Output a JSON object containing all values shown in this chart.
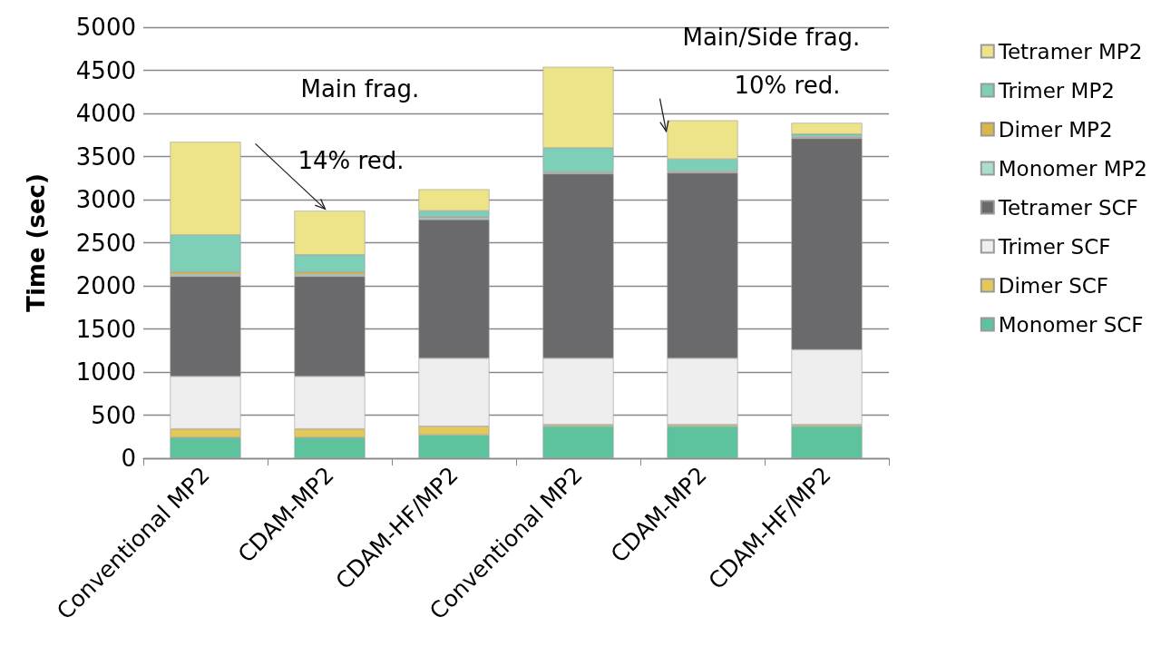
{
  "chart_data": {
    "type": "bar",
    "stacked": true,
    "ylabel": "Time (sec)",
    "categories": [
      "Conventional MP2",
      "CDAM-MP2",
      "CDAM-HF/MP2",
      "Conventional MP2",
      "CDAM-MP2",
      "CDAM-HF/MP2"
    ],
    "series": [
      {
        "name": "Monomer SCF",
        "color": "#5cc39d",
        "values": [
          240,
          240,
          270,
          370,
          370,
          370
        ]
      },
      {
        "name": "Dimer SCF",
        "color": "#e3c95a",
        "values": [
          100,
          100,
          100,
          20,
          20,
          20
        ]
      },
      {
        "name": "Trimer SCF",
        "color": "#eeeeee",
        "values": [
          610,
          610,
          790,
          770,
          770,
          870
        ]
      },
      {
        "name": "Tetramer SCF",
        "color": "#6a6a6c",
        "values": [
          1160,
          1160,
          1610,
          2140,
          2150,
          2450
        ]
      },
      {
        "name": "Monomer MP2",
        "color": "#a8ddd0",
        "values": [
          20,
          20,
          20,
          10,
          10,
          10
        ]
      },
      {
        "name": "Dimer MP2",
        "color": "#d9b54a",
        "values": [
          30,
          30,
          10,
          10,
          10,
          10
        ]
      },
      {
        "name": "Trimer MP2",
        "color": "#7ecfb8",
        "values": [
          430,
          200,
          70,
          280,
          140,
          30
        ]
      },
      {
        "name": "Tetramer MP2",
        "color": "#ede48a",
        "values": [
          1080,
          510,
          250,
          940,
          450,
          130
        ]
      }
    ],
    "ylim": [
      0,
      5000
    ],
    "yticks": [
      0,
      500,
      1000,
      1500,
      2000,
      2500,
      3000,
      3500,
      4000,
      4500,
      5000
    ],
    "grid": "y",
    "legend": "right",
    "annotations": [
      "Main frag.",
      "14% red.",
      "Main/Side frag.",
      "10% red."
    ]
  }
}
